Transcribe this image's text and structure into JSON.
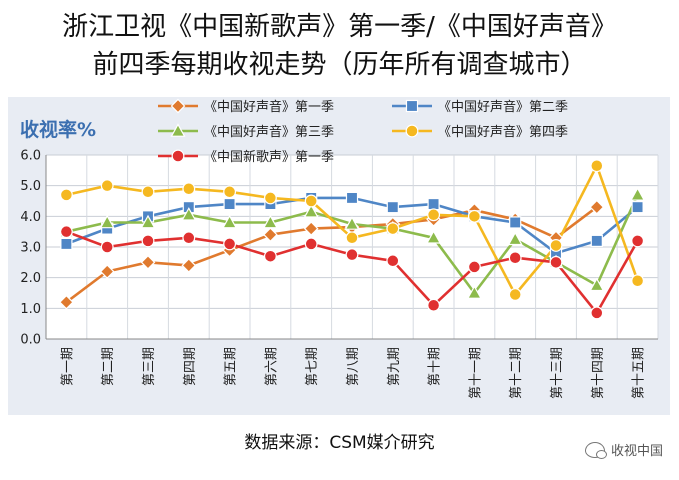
{
  "page": {
    "title_line1": "浙江卫视《中国新歌声》第一季/《中国好声音》",
    "title_line2": "前四季每期收视走势（历年所有调查城市）",
    "source": "数据来源：CSM媒介研究",
    "watermark": "收视中国"
  },
  "chart_data": {
    "type": "line",
    "ylabel": "收视率%",
    "ylim": [
      0,
      6
    ],
    "yticks": [
      "0.0",
      "1.0",
      "2.0",
      "3.0",
      "4.0",
      "5.0",
      "6.0"
    ],
    "categories": [
      "第一期",
      "第二期",
      "第三期",
      "第四期",
      "第五期",
      "第六期",
      "第七期",
      "第八期",
      "第九期",
      "第十期",
      "第十一期",
      "第十二期",
      "第十三期",
      "第十四期",
      "第十五期"
    ],
    "series": [
      {
        "name": "《中国好声音》第一季",
        "color": "#E07A2E",
        "marker": "diamond",
        "values": [
          1.2,
          2.2,
          2.5,
          2.4,
          2.9,
          3.4,
          3.6,
          3.65,
          3.75,
          3.9,
          4.2,
          3.9,
          3.3,
          4.3,
          null
        ]
      },
      {
        "name": "《中国好声音》第二季",
        "color": "#4F86C6",
        "marker": "square",
        "values": [
          3.1,
          3.6,
          4.0,
          4.3,
          4.4,
          4.4,
          4.6,
          4.6,
          4.3,
          4.4,
          4.0,
          3.8,
          2.8,
          3.2,
          4.3
        ]
      },
      {
        "name": "《中国好声音》第三季",
        "color": "#8DBB4C",
        "marker": "triangle",
        "values": [
          3.5,
          3.8,
          3.8,
          4.05,
          3.8,
          3.8,
          4.15,
          3.75,
          3.6,
          3.3,
          1.5,
          3.25,
          2.5,
          1.75,
          4.7
        ]
      },
      {
        "name": "《中国好声音》第四季",
        "color": "#F5B820",
        "marker": "circle",
        "values": [
          4.7,
          5.0,
          4.8,
          4.9,
          4.8,
          4.6,
          4.5,
          3.3,
          3.6,
          4.05,
          4.0,
          1.45,
          3.05,
          5.65,
          1.9
        ]
      },
      {
        "name": "《中国新歌声》第一季",
        "color": "#E03030",
        "marker": "circle",
        "values": [
          3.5,
          3.0,
          3.2,
          3.3,
          3.1,
          2.7,
          3.1,
          2.75,
          2.55,
          1.1,
          2.35,
          2.65,
          2.5,
          0.85,
          3.2
        ]
      }
    ]
  }
}
